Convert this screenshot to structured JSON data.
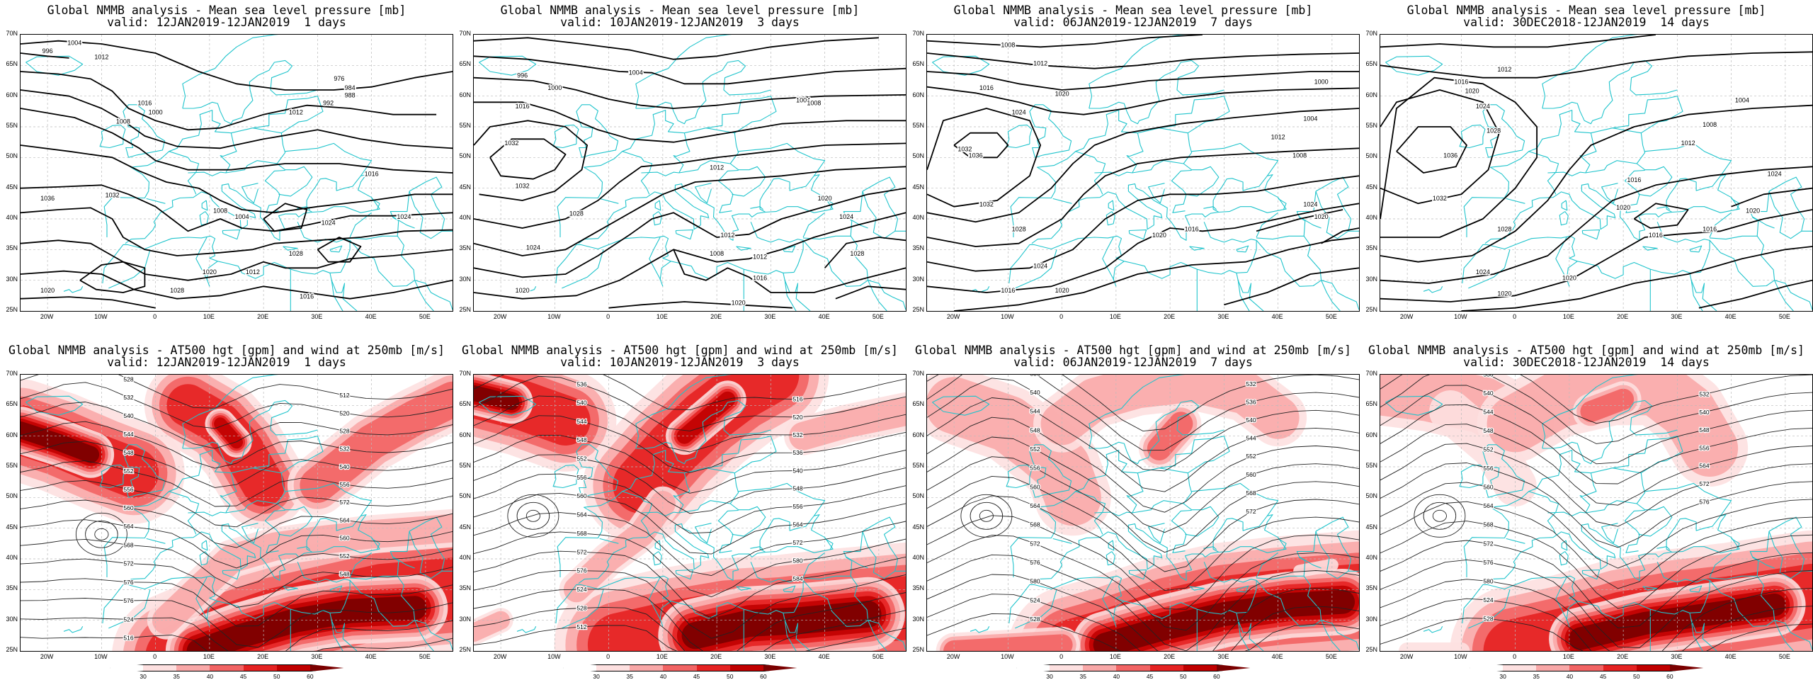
{
  "panels": [
    {
      "title": "Global NMMB analysis - Mean sea level pressure [mb]",
      "valid": "valid: 12JAN2019-12JAN2019  1 days"
    },
    {
      "title": "Global NMMB analysis - Mean sea level pressure [mb]",
      "valid": "valid: 10JAN2019-12JAN2019  3 days"
    },
    {
      "title": "Global NMMB analysis - Mean sea level pressure [mb]",
      "valid": "valid: 06JAN2019-12JAN2019  7 days"
    },
    {
      "title": "Global NMMB analysis - Mean sea level pressure [mb]",
      "valid": "valid: 30DEC2018-12JAN2019  14 days"
    },
    {
      "title": "Global NMMB analysis - AT500 hgt [gpm] and wind at 250mb [m/s]",
      "valid": "valid: 12JAN2019-12JAN2019  1 days"
    },
    {
      "title": "Global NMMB analysis - AT500 hgt [gpm] and wind at 250mb [m/s]",
      "valid": "valid: 10JAN2019-12JAN2019  3 days"
    },
    {
      "title": "Global NMMB analysis - AT500 hgt [gpm] and wind at 250mb [m/s]",
      "valid": "valid: 06JAN2019-12JAN2019  7 days"
    },
    {
      "title": "Global NMMB analysis - AT500 hgt [gpm] and wind at 250mb [m/s]",
      "valid": "valid: 30DEC2018-12JAN2019  14 days"
    }
  ],
  "lat_labels": [
    "70N",
    "65N",
    "60N",
    "55N",
    "50N",
    "45N",
    "40N",
    "35N",
    "30N",
    "25N"
  ],
  "lon_labels": [
    "20W",
    "10W",
    "0",
    "10E",
    "20E",
    "30E",
    "40E",
    "50E"
  ],
  "colorbar": {
    "ticks": [
      "30",
      "35",
      "40",
      "45",
      "50",
      "60"
    ],
    "colors": [
      "#ffffff",
      "#fde0e0",
      "#f9a8a8",
      "#f26464",
      "#e52222",
      "#c00000",
      "#7a0000"
    ]
  },
  "colors": {
    "coast": "#20c4cc",
    "contour": "#000000",
    "jet": "#e01010"
  },
  "mslp_labels": [
    [
      "1004",
      "996",
      "1012",
      "1016",
      "1008",
      "1000",
      "976",
      "984",
      "988",
      "992",
      "1012",
      "1036",
      "1032",
      "1024",
      "1028",
      "1020",
      "1016",
      "1012",
      "1008",
      "1004",
      "1024",
      "1020",
      "1016",
      "1028"
    ],
    [
      "996",
      "1000",
      "1004",
      "1016",
      "1032",
      "1032",
      "1028",
      "1024",
      "1020",
      "1012",
      "1008",
      "1012",
      "1016",
      "1020",
      "1024",
      "1028",
      "1020",
      "1012",
      "1004",
      "1008"
    ],
    [
      "1008",
      "1012",
      "1016",
      "1020",
      "1024",
      "1032",
      "1036",
      "1032",
      "1028",
      "1024",
      "1020",
      "1016",
      "1016",
      "1012",
      "1008",
      "1004",
      "1000",
      "1020",
      "1024",
      "1020"
    ],
    [
      "1012",
      "1016",
      "1020",
      "1024",
      "1028",
      "1036",
      "1032",
      "1028",
      "1024",
      "1020",
      "1020",
      "1016",
      "1012",
      "1008",
      "1004",
      "1020",
      "1024",
      "1016",
      "1016",
      "1020"
    ]
  ],
  "z500_labels": [
    [
      "528",
      "532",
      "540",
      "544",
      "548",
      "552",
      "556",
      "560",
      "564",
      "568",
      "572",
      "576",
      "576",
      "524",
      "516",
      "512",
      "520",
      "528",
      "532",
      "540",
      "556",
      "572",
      "564",
      "560",
      "552",
      "548"
    ],
    [
      "532",
      "536",
      "540",
      "544",
      "548",
      "552",
      "556",
      "560",
      "564",
      "568",
      "572",
      "576",
      "524",
      "528",
      "512",
      "516",
      "520",
      "532",
      "536",
      "540",
      "548",
      "556",
      "564",
      "572",
      "580",
      "584"
    ],
    [
      "532",
      "536",
      "540",
      "544",
      "548",
      "552",
      "556",
      "560",
      "564",
      "568",
      "572",
      "576",
      "580",
      "524",
      "528",
      "532",
      "536",
      "540",
      "544",
      "552",
      "560",
      "568",
      "572"
    ],
    [
      "532",
      "536",
      "540",
      "544",
      "548",
      "552",
      "556",
      "560",
      "564",
      "568",
      "572",
      "576",
      "580",
      "524",
      "528",
      "532",
      "540",
      "548",
      "556",
      "564",
      "572",
      "576"
    ]
  ]
}
